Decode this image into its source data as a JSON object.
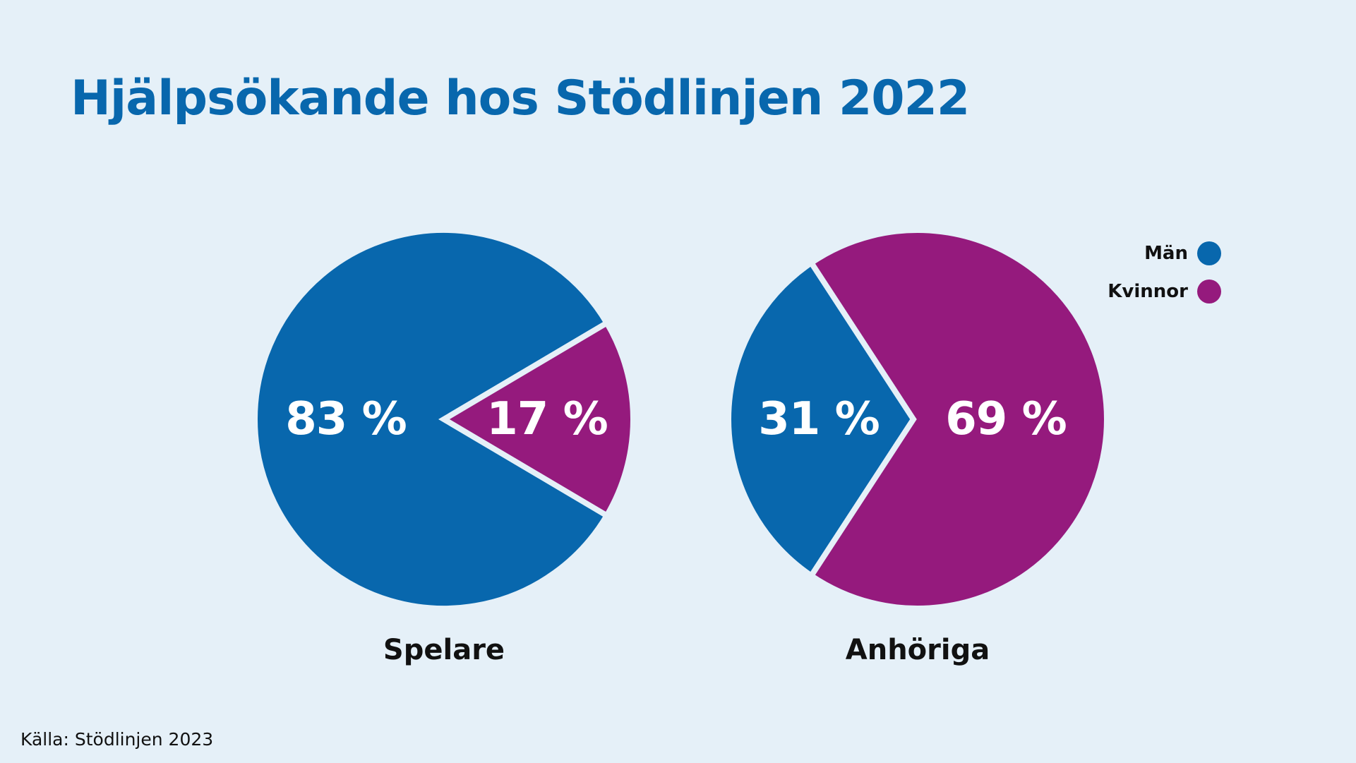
{
  "title": "Hjälpsökande hos Stödlinjen 2022",
  "source": "Källa: Stödlinjen 2023",
  "colors": {
    "background": "#e5f0f8",
    "man": "#0867ad",
    "kvinnor": "#951a7d",
    "title": "#0867ad"
  },
  "chart_data": {
    "type": "pie",
    "legend": [
      {
        "name": "Män",
        "color": "#0867ad"
      },
      {
        "name": "Kvinnor",
        "color": "#951a7d"
      }
    ],
    "legend_position": "top-right",
    "pies": [
      {
        "category": "Spelare",
        "slices": [
          {
            "series": "Män",
            "value": 83,
            "label": "83 %"
          },
          {
            "series": "Kvinnor",
            "value": 17,
            "label": "17 %"
          }
        ]
      },
      {
        "category": "Anhöriga",
        "slices": [
          {
            "series": "Män",
            "value": 31,
            "label": "31 %"
          },
          {
            "series": "Kvinnor",
            "value": 69,
            "label": "69 %"
          }
        ]
      }
    ]
  }
}
